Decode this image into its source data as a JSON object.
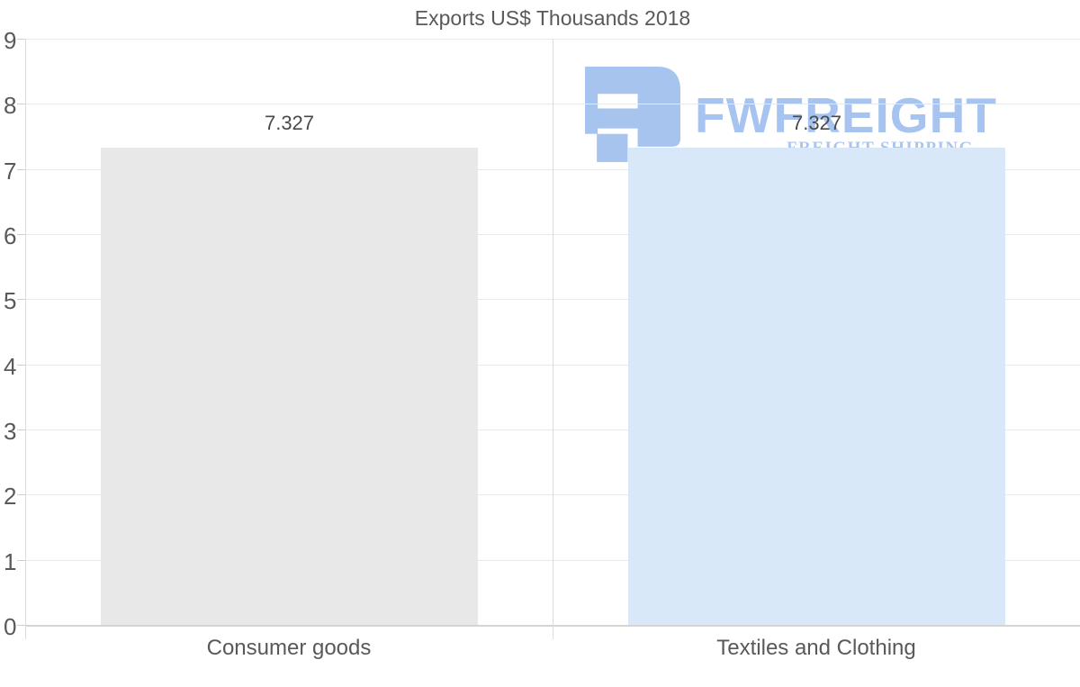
{
  "title": "Exports US$ Thousands 2018",
  "watermark": {
    "brand": "FWFREIGHT",
    "tagline": "FREIGHT SHIPPING",
    "logo_color": "#a6c4ef"
  },
  "chart_data": {
    "type": "bar",
    "title": "Exports US$ Thousands 2018",
    "categories": [
      "Consumer goods",
      "Textiles and Clothing"
    ],
    "values": [
      7.327,
      7.327
    ],
    "value_labels": [
      "7.327",
      "7.327"
    ],
    "bar_colors": [
      "#e8e8e8",
      "#d9e8f8"
    ],
    "xlabel": "",
    "ylabel": "",
    "ylim": [
      0,
      9
    ],
    "yticks": [
      0,
      1,
      2,
      3,
      4,
      5,
      6,
      7,
      8,
      9
    ],
    "grid": "horizontal gridlines + vertical category divider",
    "legend_position": "none"
  },
  "colors": {
    "background": "#ffffff",
    "text": "#595959",
    "value_label_text": "#4a4a4a",
    "gridline": "#e9e9e9",
    "axis": "#d4d4d4",
    "bar_consumer_goods": "#e8e8e8",
    "bar_textiles_clothing": "#d9e8f8",
    "watermark_blue": "#a6c4ef"
  }
}
